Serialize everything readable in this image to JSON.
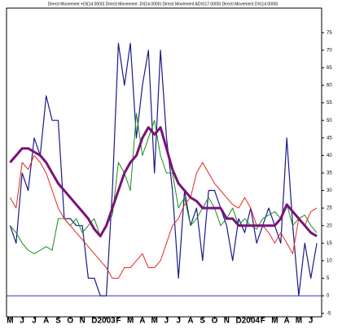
{
  "chart_data": {
    "type": "line",
    "title": "Directi Movement +DI(14.0000) Directi Movement -DI(14.0000) Directi Movement ADX(17.0000) Directi Movement DX(14.0000)",
    "x": [
      0,
      0.5,
      1,
      1.5,
      2,
      2.5,
      3,
      3.5,
      4,
      4.5,
      5,
      5.5,
      6,
      6.5,
      7,
      7.5,
      8,
      8.5,
      9,
      9.5,
      10,
      10.5,
      11,
      11.5,
      12,
      12.5,
      13,
      13.5,
      14,
      14.5,
      15,
      15.5,
      16,
      16.5,
      17,
      17.5,
      18,
      18.5,
      19,
      19.5,
      20,
      20.5,
      21,
      21.5,
      22,
      22.5,
      23,
      23.5,
      24,
      24.5,
      25,
      25.5
    ],
    "series": [
      {
        "name": "DX",
        "color": "#1a1a8c",
        "width": 1.2,
        "values": [
          20,
          15,
          35,
          30,
          45,
          40,
          57,
          50,
          50,
          22,
          22,
          20,
          20,
          5,
          5,
          0,
          0,
          30,
          72,
          60,
          72,
          45,
          60,
          70,
          35,
          70,
          45,
          30,
          5,
          30,
          20,
          25,
          10,
          30,
          30,
          25,
          20,
          10,
          22,
          18,
          25,
          15,
          20,
          25,
          20,
          15,
          45,
          20,
          0,
          15,
          5,
          15
        ]
      },
      {
        "name": "+DI",
        "color": "#1a8c1a",
        "width": 1,
        "values": [
          20,
          18,
          15,
          13,
          12,
          13,
          14,
          13,
          22,
          22,
          20,
          22,
          18,
          20,
          22,
          17,
          20,
          23,
          38,
          35,
          30,
          52,
          40,
          45,
          50,
          40,
          35,
          35,
          25,
          28,
          20,
          22,
          25,
          28,
          25,
          20,
          22,
          25,
          20,
          22,
          20,
          19,
          22,
          23,
          24,
          22,
          26,
          20,
          22,
          23,
          20,
          18
        ]
      },
      {
        "name": "-DI",
        "color": "#e8281e",
        "width": 1,
        "values": [
          28,
          25,
          38,
          36,
          40,
          38,
          35,
          30,
          25,
          22,
          20,
          18,
          16,
          14,
          12,
          10,
          8,
          5,
          5,
          8,
          8,
          10,
          12,
          8,
          8,
          10,
          15,
          20,
          22,
          26,
          28,
          35,
          38,
          35,
          32,
          30,
          28,
          26,
          25,
          28,
          25,
          20,
          20,
          18,
          15,
          18,
          15,
          12,
          22,
          20,
          24,
          25
        ]
      },
      {
        "name": "ADX",
        "color": "#7a127a",
        "width": 3,
        "values": [
          38,
          40,
          42,
          42,
          41,
          40,
          38,
          35,
          32,
          30,
          28,
          26,
          24,
          22,
          19,
          17,
          20,
          25,
          30,
          35,
          38,
          40,
          45,
          48,
          46,
          48,
          42,
          36,
          32,
          30,
          28,
          27,
          25,
          25,
          25,
          25,
          22,
          22,
          20,
          20,
          20,
          20,
          20,
          20,
          20,
          22,
          26,
          24,
          22,
          20,
          18,
          17
        ]
      }
    ],
    "xlim": [
      -0.3,
      25.9
    ],
    "xticks": [
      {
        "value": 0,
        "label": "M"
      },
      {
        "value": 1,
        "label": "J"
      },
      {
        "value": 2,
        "label": "J"
      },
      {
        "value": 3,
        "label": "A"
      },
      {
        "value": 4,
        "label": "S"
      },
      {
        "value": 5,
        "label": "O"
      },
      {
        "value": 6,
        "label": "N"
      },
      {
        "value": 7,
        "label": "D"
      },
      {
        "value": 8,
        "label": "2003"
      },
      {
        "value": 9,
        "label": "F"
      },
      {
        "value": 10,
        "label": "M"
      },
      {
        "value": 11,
        "label": "A"
      },
      {
        "value": 12,
        "label": "M"
      },
      {
        "value": 13,
        "label": "J"
      },
      {
        "value": 14,
        "label": "J"
      },
      {
        "value": 15,
        "label": "A"
      },
      {
        "value": 16,
        "label": "S"
      },
      {
        "value": 17,
        "label": "O"
      },
      {
        "value": 18,
        "label": "N"
      },
      {
        "value": 19,
        "label": "D"
      },
      {
        "value": 20,
        "label": "2004"
      },
      {
        "value": 21,
        "label": "F"
      },
      {
        "value": 22,
        "label": "M"
      },
      {
        "value": 23,
        "label": "A"
      },
      {
        "value": 24,
        "label": "M"
      },
      {
        "value": 25,
        "label": "J"
      }
    ],
    "ylim": [
      -6,
      82
    ],
    "yticks": [
      -5,
      0,
      5,
      10,
      15,
      20,
      25,
      30,
      35,
      40,
      45,
      50,
      55,
      60,
      65,
      70,
      75
    ],
    "reference_line": 0,
    "reference_color": "#3030c0"
  }
}
